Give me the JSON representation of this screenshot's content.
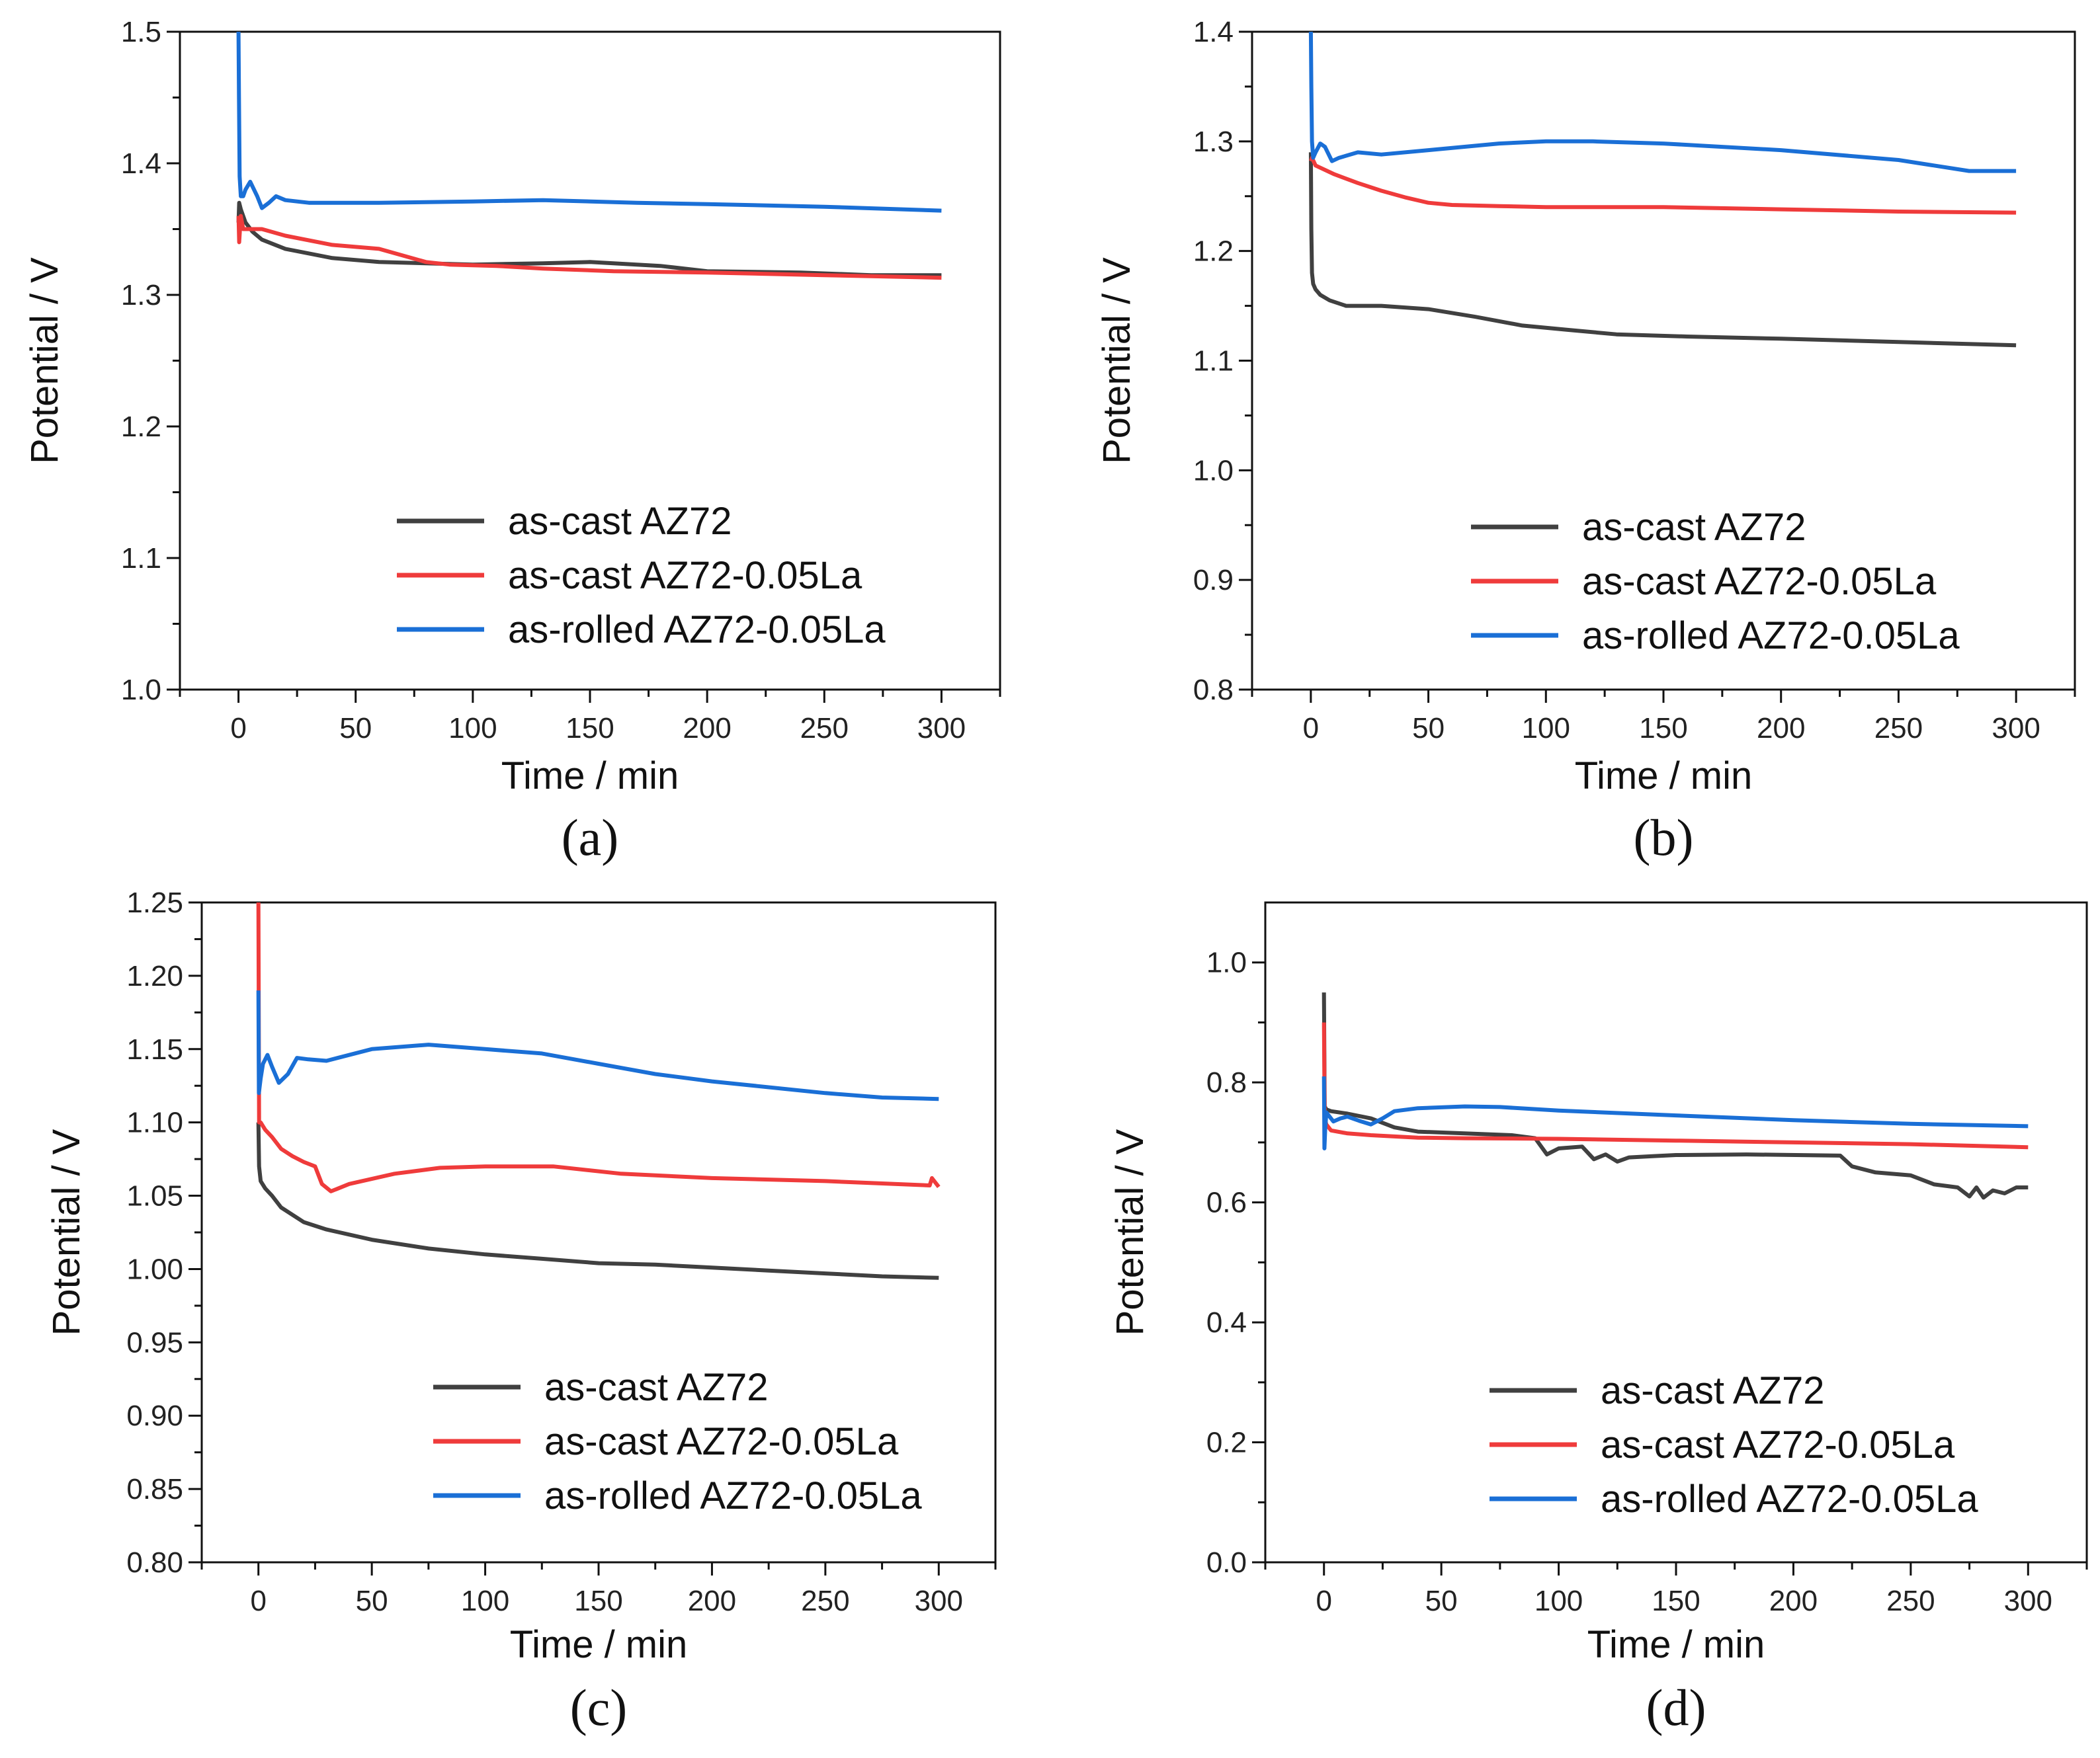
{
  "colors": {
    "as_cast_az72": "#404040",
    "as_cast_az72_la": "#ef3b3b",
    "as_rolled_az72_la": "#1a6fd6"
  },
  "chart_data": [
    {
      "type": "line",
      "panel_label": "(a)",
      "xlabel": "Time / min",
      "ylabel": "Potential / V",
      "xlim": [
        -25,
        325
      ],
      "ylim": [
        1.0,
        1.5
      ],
      "xticks": [
        0,
        50,
        100,
        150,
        200,
        250,
        300
      ],
      "xtick_labels": [
        "0",
        "50",
        "100",
        "150",
        "200",
        "250",
        "300"
      ],
      "yticks": [
        1.0,
        1.1,
        1.2,
        1.3,
        1.4,
        1.5
      ],
      "ytick_labels": [
        "1.0",
        "1.1",
        "1.2",
        "1.3",
        "1.4",
        "1.5"
      ],
      "legend_position": "center-right",
      "series": [
        {
          "name": "as-cast  AZ72",
          "color": "#404040",
          "x": [
            0,
            0.3,
            1,
            3,
            6,
            10,
            20,
            40,
            60,
            80,
            100,
            130,
            150,
            180,
            200,
            240,
            270,
            300
          ],
          "y": [
            1.355,
            1.37,
            1.365,
            1.355,
            1.348,
            1.342,
            1.335,
            1.328,
            1.325,
            1.324,
            1.323,
            1.324,
            1.325,
            1.322,
            1.318,
            1.317,
            1.315,
            1.315
          ]
        },
        {
          "name": "as-cast AZ72-0.05La",
          "color": "#ef3b3b",
          "x": [
            0,
            0.3,
            1,
            2,
            5,
            10,
            20,
            40,
            60,
            80,
            90,
            110,
            130,
            160,
            200,
            250,
            300
          ],
          "y": [
            1.36,
            1.34,
            1.36,
            1.35,
            1.35,
            1.35,
            1.345,
            1.338,
            1.335,
            1.325,
            1.323,
            1.322,
            1.32,
            1.318,
            1.317,
            1.315,
            1.313
          ]
        },
        {
          "name": "as-rolled AZ72-0.05La",
          "color": "#1a6fd6",
          "x": [
            0,
            0.2,
            0.5,
            1,
            2,
            3,
            5,
            8,
            10,
            13,
            16,
            20,
            30,
            60,
            100,
            130,
            170,
            200,
            250,
            300
          ],
          "y": [
            1.5,
            1.45,
            1.39,
            1.375,
            1.375,
            1.38,
            1.386,
            1.375,
            1.366,
            1.37,
            1.375,
            1.372,
            1.37,
            1.37,
            1.371,
            1.372,
            1.37,
            1.369,
            1.367,
            1.364
          ]
        }
      ]
    },
    {
      "type": "line",
      "panel_label": "(b)",
      "xlabel": "Time / min",
      "ylabel": "Potential / V",
      "xlim": [
        -25,
        325
      ],
      "ylim": [
        0.8,
        1.4
      ],
      "xticks": [
        0,
        50,
        100,
        150,
        200,
        250,
        300
      ],
      "xtick_labels": [
        "0",
        "50",
        "100",
        "150",
        "200",
        "250",
        "300"
      ],
      "yticks": [
        0.8,
        0.9,
        1.0,
        1.1,
        1.2,
        1.3,
        1.4
      ],
      "ytick_labels": [
        "0.8",
        "0.9",
        "1.0",
        "1.1",
        "1.2",
        "1.3",
        "1.4"
      ],
      "legend_position": "center-right",
      "series": [
        {
          "name": "as-cast  AZ72",
          "color": "#404040",
          "x": [
            0,
            0.2,
            0.5,
            1,
            2,
            4,
            8,
            15,
            30,
            50,
            70,
            90,
            110,
            130,
            160,
            200,
            250,
            300
          ],
          "y": [
            1.29,
            1.22,
            1.18,
            1.17,
            1.165,
            1.16,
            1.155,
            1.15,
            1.15,
            1.147,
            1.14,
            1.132,
            1.128,
            1.124,
            1.122,
            1.12,
            1.117,
            1.114
          ]
        },
        {
          "name": "as-cast AZ72-0.05La",
          "color": "#ef3b3b",
          "x": [
            0,
            0.5,
            2,
            10,
            20,
            30,
            40,
            50,
            60,
            80,
            100,
            150,
            200,
            250,
            300
          ],
          "y": [
            1.282,
            1.285,
            1.278,
            1.27,
            1.262,
            1.255,
            1.249,
            1.244,
            1.242,
            1.241,
            1.24,
            1.24,
            1.238,
            1.236,
            1.235
          ]
        },
        {
          "name": "as-rolled AZ72-0.05La",
          "color": "#1a6fd6",
          "x": [
            0,
            0.2,
            0.5,
            1,
            2,
            4,
            6,
            9,
            12,
            20,
            30,
            50,
            80,
            100,
            120,
            150,
            200,
            250,
            280,
            300
          ],
          "y": [
            1.4,
            1.35,
            1.3,
            1.285,
            1.29,
            1.298,
            1.295,
            1.282,
            1.285,
            1.29,
            1.288,
            1.292,
            1.298,
            1.3,
            1.3,
            1.298,
            1.292,
            1.283,
            1.273,
            1.273
          ]
        }
      ]
    },
    {
      "type": "line",
      "panel_label": "(c)",
      "xlabel": "Time / min",
      "ylabel": "Potential / V",
      "xlim": [
        -25,
        325
      ],
      "ylim": [
        0.8,
        1.25
      ],
      "xticks": [
        0,
        50,
        100,
        150,
        200,
        250,
        300
      ],
      "xtick_labels": [
        "0",
        "50",
        "100",
        "150",
        "200",
        "250",
        "300"
      ],
      "yticks": [
        0.8,
        0.85,
        0.9,
        0.95,
        1.0,
        1.05,
        1.1,
        1.15,
        1.2,
        1.25
      ],
      "ytick_labels": [
        "0.80",
        "0.85",
        "0.90",
        "0.95",
        "1.00",
        "1.05",
        "1.10",
        "1.15",
        "1.20",
        "1.25"
      ],
      "legend_position": "bottom-right",
      "series": [
        {
          "name": "as-cast  AZ72",
          "color": "#404040",
          "x": [
            0,
            0.3,
            1,
            3,
            6,
            10,
            20,
            30,
            50,
            75,
            100,
            125,
            150,
            175,
            200,
            225,
            250,
            275,
            300
          ],
          "y": [
            1.1,
            1.07,
            1.06,
            1.055,
            1.05,
            1.042,
            1.032,
            1.027,
            1.02,
            1.014,
            1.01,
            1.007,
            1.004,
            1.003,
            1.001,
            0.999,
            0.997,
            0.995,
            0.994
          ]
        },
        {
          "name": "as-cast AZ72-0.05La",
          "color": "#ef3b3b",
          "x": [
            0,
            0.3,
            1,
            3,
            6,
            10,
            15,
            20,
            25,
            28,
            32,
            40,
            60,
            80,
            100,
            130,
            160,
            200,
            250,
            296,
            297,
            300
          ],
          "y": [
            1.25,
            1.1,
            1.1,
            1.095,
            1.09,
            1.082,
            1.077,
            1.073,
            1.07,
            1.058,
            1.053,
            1.058,
            1.065,
            1.069,
            1.07,
            1.07,
            1.065,
            1.062,
            1.06,
            1.057,
            1.062,
            1.056
          ]
        },
        {
          "name": "as-rolled AZ72-0.05La",
          "color": "#1a6fd6",
          "x": [
            0,
            0.2,
            1,
            2,
            4,
            6,
            9,
            13,
            17,
            22,
            30,
            50,
            75,
            100,
            125,
            150,
            175,
            200,
            250,
            275,
            300
          ],
          "y": [
            1.19,
            1.12,
            1.13,
            1.14,
            1.146,
            1.138,
            1.127,
            1.133,
            1.144,
            1.143,
            1.142,
            1.15,
            1.153,
            1.15,
            1.147,
            1.14,
            1.133,
            1.128,
            1.12,
            1.117,
            1.116
          ]
        }
      ]
    },
    {
      "type": "line",
      "panel_label": "(d)",
      "xlabel": "Time / min",
      "ylabel": "Potential / V",
      "xlim": [
        -25,
        325
      ],
      "ylim": [
        0.0,
        1.1
      ],
      "xticks": [
        0,
        50,
        100,
        150,
        200,
        250,
        300
      ],
      "xtick_labels": [
        "0",
        "50",
        "100",
        "150",
        "200",
        "250",
        "300"
      ],
      "yticks": [
        0.0,
        0.2,
        0.4,
        0.6,
        0.8,
        1.0
      ],
      "ytick_labels": [
        "0.0",
        "0.2",
        "0.4",
        "0.6",
        "0.8",
        "1.0"
      ],
      "legend_position": "bottom-right",
      "series": [
        {
          "name": "as-cast  AZ72",
          "color": "#404040",
          "x": [
            0,
            0.3,
            1,
            3,
            10,
            20,
            30,
            40,
            60,
            80,
            90,
            95,
            100,
            110,
            115,
            120,
            125,
            130,
            140,
            150,
            180,
            220,
            225,
            235,
            250,
            260,
            270,
            275,
            278,
            281,
            285,
            290,
            295,
            300
          ],
          "y": [
            0.95,
            0.76,
            0.755,
            0.752,
            0.748,
            0.74,
            0.725,
            0.718,
            0.715,
            0.712,
            0.707,
            0.68,
            0.69,
            0.693,
            0.672,
            0.68,
            0.668,
            0.675,
            0.677,
            0.679,
            0.68,
            0.678,
            0.66,
            0.65,
            0.645,
            0.63,
            0.625,
            0.61,
            0.625,
            0.608,
            0.62,
            0.615,
            0.625,
            0.625
          ]
        },
        {
          "name": "as-cast AZ72-0.05La",
          "color": "#ef3b3b",
          "x": [
            0,
            0.3,
            1,
            3,
            10,
            20,
            40,
            60,
            100,
            150,
            200,
            250,
            300
          ],
          "y": [
            0.9,
            0.74,
            0.73,
            0.72,
            0.715,
            0.712,
            0.708,
            0.707,
            0.706,
            0.703,
            0.7,
            0.697,
            0.692
          ]
        },
        {
          "name": "as-rolled AZ72-0.05La",
          "color": "#1a6fd6",
          "x": [
            0,
            0.2,
            0.5,
            1,
            2,
            4,
            7,
            10,
            15,
            20,
            25,
            30,
            40,
            60,
            75,
            100,
            150,
            200,
            250,
            300
          ],
          "y": [
            0.81,
            0.69,
            0.72,
            0.75,
            0.745,
            0.735,
            0.74,
            0.743,
            0.736,
            0.73,
            0.74,
            0.752,
            0.757,
            0.76,
            0.759,
            0.753,
            0.745,
            0.737,
            0.731,
            0.727
          ]
        }
      ]
    }
  ]
}
